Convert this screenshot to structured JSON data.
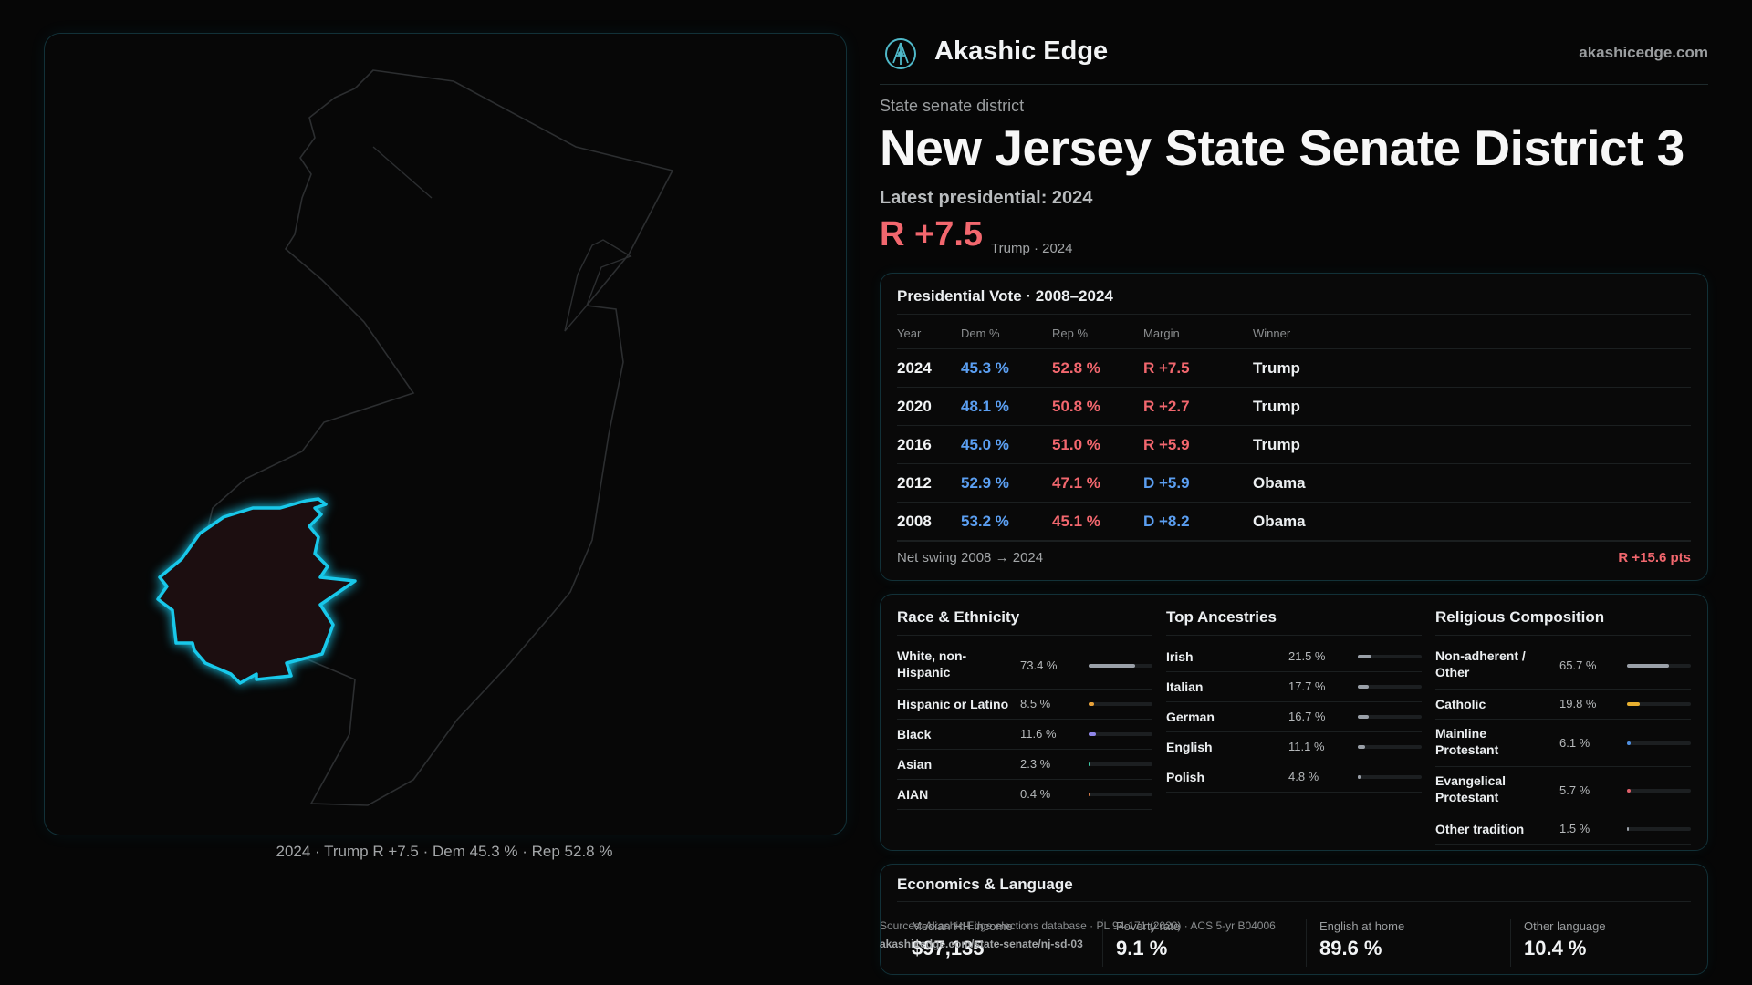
{
  "brand": {
    "name": "Akashic Edge",
    "url": "akashicedge.com"
  },
  "header": {
    "kicker": "State senate district",
    "title": "New Jersey State Senate District 3",
    "latest_label": "Latest presidential: 2024",
    "margin": "R +7.5",
    "margin_sub": "Trump · 2024"
  },
  "map": {
    "caption": "2024 · Trump R +7.5 · Dem 45.3 % · Rep 52.8 %",
    "highlight_color": "#18c8ea"
  },
  "presidential": {
    "title": "Presidential Vote · 2008–2024",
    "columns": [
      "Year",
      "Dem %",
      "Rep %",
      "Margin",
      "Winner"
    ],
    "rows": [
      {
        "year": "2024",
        "dem": "45.3 %",
        "rep": "52.8 %",
        "margin": "R +7.5",
        "party": "R",
        "winner": "Trump"
      },
      {
        "year": "2020",
        "dem": "48.1 %",
        "rep": "50.8 %",
        "margin": "R +2.7",
        "party": "R",
        "winner": "Trump"
      },
      {
        "year": "2016",
        "dem": "45.0 %",
        "rep": "51.0 %",
        "margin": "R +5.9",
        "party": "R",
        "winner": "Trump"
      },
      {
        "year": "2012",
        "dem": "52.9 %",
        "rep": "47.1 %",
        "margin": "D +5.9",
        "party": "D",
        "winner": "Obama"
      },
      {
        "year": "2008",
        "dem": "53.2 %",
        "rep": "45.1 %",
        "margin": "D +8.2",
        "party": "D",
        "winner": "Obama"
      }
    ],
    "swing_label": "Net swing 2008 → 2024",
    "swing_value": "R +15.6 pts"
  },
  "race": {
    "title": "Race & Ethnicity",
    "rows": [
      {
        "label": "White, non-Hispanic",
        "pct": "73.4 %",
        "value": 73.4,
        "color": "#9aa0a8"
      },
      {
        "label": "Hispanic or Latino",
        "pct": "8.5 %",
        "value": 8.5,
        "color": "#e8a23a"
      },
      {
        "label": "Black",
        "pct": "11.6 %",
        "value": 11.6,
        "color": "#8f86e8"
      },
      {
        "label": "Asian",
        "pct": "2.3 %",
        "value": 2.3,
        "color": "#3fc9a6"
      },
      {
        "label": "AIAN",
        "pct": "0.4 %",
        "value": 0.4,
        "color": "#d07a4a"
      }
    ]
  },
  "ancestries": {
    "title": "Top Ancestries",
    "rows": [
      {
        "label": "Irish",
        "pct": "21.5 %",
        "value": 21.5,
        "color": "#9aa0a8"
      },
      {
        "label": "Italian",
        "pct": "17.7 %",
        "value": 17.7,
        "color": "#9aa0a8"
      },
      {
        "label": "German",
        "pct": "16.7 %",
        "value": 16.7,
        "color": "#9aa0a8"
      },
      {
        "label": "English",
        "pct": "11.1 %",
        "value": 11.1,
        "color": "#9aa0a8"
      },
      {
        "label": "Polish",
        "pct": "4.8 %",
        "value": 4.8,
        "color": "#9aa0a8"
      }
    ]
  },
  "religion": {
    "title": "Religious Composition",
    "rows": [
      {
        "label": "Non-adherent / Other",
        "pct": "65.7 %",
        "value": 65.7,
        "color": "#9aa0a8"
      },
      {
        "label": "Catholic",
        "pct": "19.8 %",
        "value": 19.8,
        "color": "#e8b030"
      },
      {
        "label": "Mainline Protestant",
        "pct": "6.1 %",
        "value": 6.1,
        "color": "#4f8fe0"
      },
      {
        "label": "Evangelical Protestant",
        "pct": "5.7 %",
        "value": 5.7,
        "color": "#e0606a"
      },
      {
        "label": "Other tradition",
        "pct": "1.5 %",
        "value": 1.5,
        "color": "#9aa0a8"
      }
    ]
  },
  "economics": {
    "title": "Economics & Language",
    "cells": [
      {
        "label": "Median HH income",
        "value": "$97,135"
      },
      {
        "label": "Poverty rate",
        "value": "9.1 %"
      },
      {
        "label": "English at home",
        "value": "89.6 %"
      },
      {
        "label": "Other language",
        "value": "10.4 %"
      }
    ]
  },
  "sources": {
    "text": "Sources: Akashic Edge elections database · PL 94-171 (2020) · ACS 5-yr B04006",
    "url": "akashicedge.com/state-senate/nj-sd-03"
  }
}
